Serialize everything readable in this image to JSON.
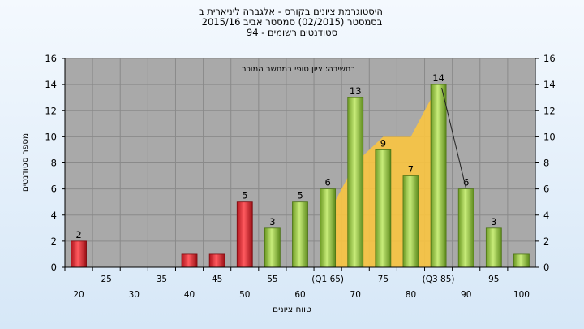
{
  "chart_data": {
    "type": "bar",
    "title_lines": [
      "היסטוגרמת ציונים בקורס - אלגברה ליניארית ב'",
      "בסמסטר  (02/2015)  סמסטר אביב 2015/16",
      "סטודנטים רשומים - 94"
    ],
    "annotation": "בחשיבה: ציון סופי במחשב המוכר",
    "xlabel": "טווח ציונים",
    "ylabel": "מספר סטודנטים",
    "ylim": [
      0,
      16
    ],
    "yticks": [
      0,
      2,
      4,
      6,
      8,
      10,
      12,
      14,
      16
    ],
    "categories": [
      "20",
      "25",
      "30",
      "35",
      "40",
      "45",
      "50",
      "55",
      "60",
      "(Q1 65)",
      "70",
      "75",
      "80",
      "(Q3 85)",
      "90",
      "95",
      "100"
    ],
    "values": [
      2,
      0,
      0,
      0,
      1,
      1,
      5,
      3,
      5,
      6,
      13,
      9,
      7,
      14,
      6,
      3,
      1
    ],
    "data_labels": [
      "2",
      "",
      "",
      "",
      "",
      "",
      "5",
      "3",
      "5",
      "6",
      "13",
      "9",
      "7",
      "14",
      "6",
      "3",
      ""
    ],
    "bar_colors": [
      "#e8343a",
      "#e8343a",
      "#e8343a",
      "#e8343a",
      "#e8343a",
      "#e8343a",
      "#e8343a",
      "#9acd45",
      "#9acd45",
      "#9acd45",
      "#9acd45",
      "#9acd45",
      "#9acd45",
      "#9acd45",
      "#9acd45",
      "#9acd45",
      "#9acd45"
    ],
    "iqr_band": {
      "color": "#f9c440",
      "x_start": "(Q1 65)",
      "x_end": "(Q3 85)",
      "values": [
        4,
        8,
        10,
        10,
        14
      ]
    },
    "grid": true,
    "plot_background": "#a9a9a9"
  }
}
